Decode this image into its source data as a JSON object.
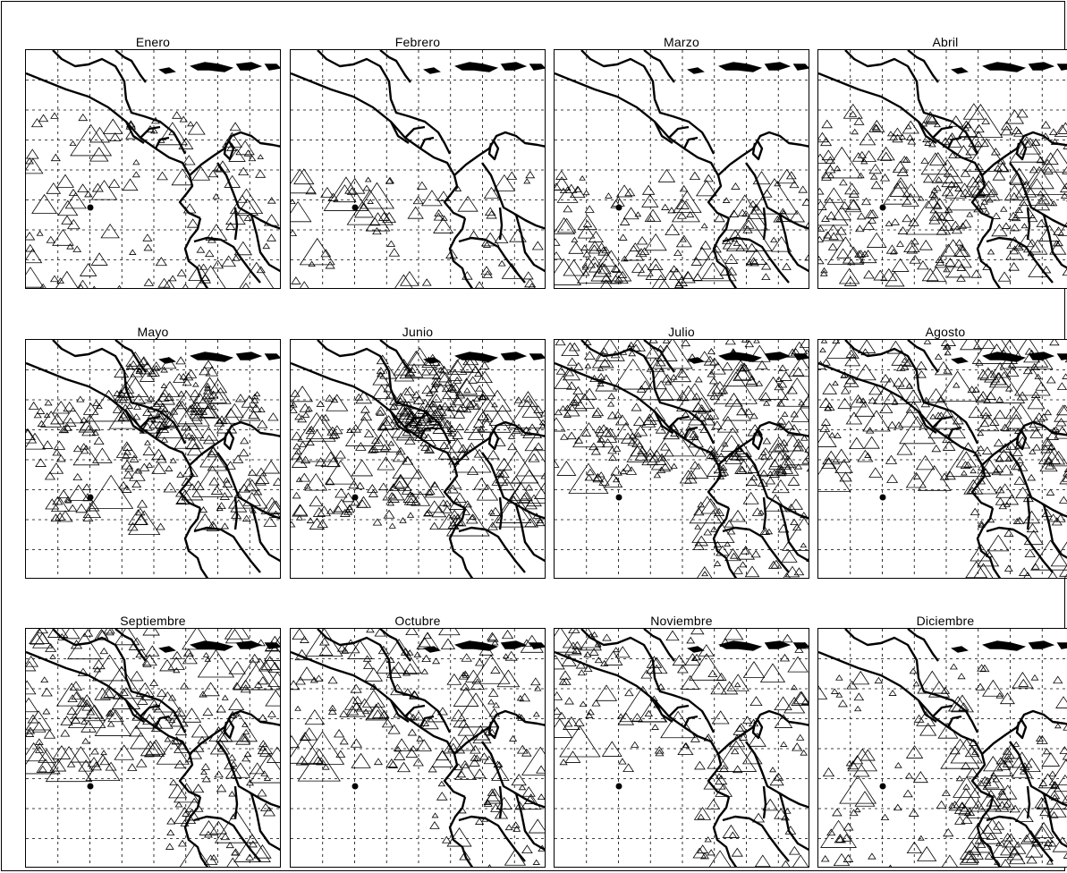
{
  "figure": {
    "panels": [
      {
        "title": "Enero",
        "density": 120,
        "region": "mixed"
      },
      {
        "title": "Febrero",
        "density": 70,
        "region": "south"
      },
      {
        "title": "Marzo",
        "density": 150,
        "region": "south"
      },
      {
        "title": "Abril",
        "density": 280,
        "region": "broad"
      },
      {
        "title": "Mayo",
        "density": 260,
        "region": "center"
      },
      {
        "title": "Junio",
        "density": 340,
        "region": "center"
      },
      {
        "title": "Julio",
        "density": 340,
        "region": "north"
      },
      {
        "title": "Agosto",
        "density": 260,
        "region": "north"
      },
      {
        "title": "Septiembre",
        "density": 240,
        "region": "north"
      },
      {
        "title": "Octubre",
        "density": 200,
        "region": "north"
      },
      {
        "title": "Noviembre",
        "density": 150,
        "region": "north"
      },
      {
        "title": "Diciembre",
        "density": 190,
        "region": "east"
      }
    ],
    "marker": "triangle-outline",
    "colors": {
      "ink": "#000000",
      "background": "#ffffff",
      "grid": "#000000"
    }
  }
}
